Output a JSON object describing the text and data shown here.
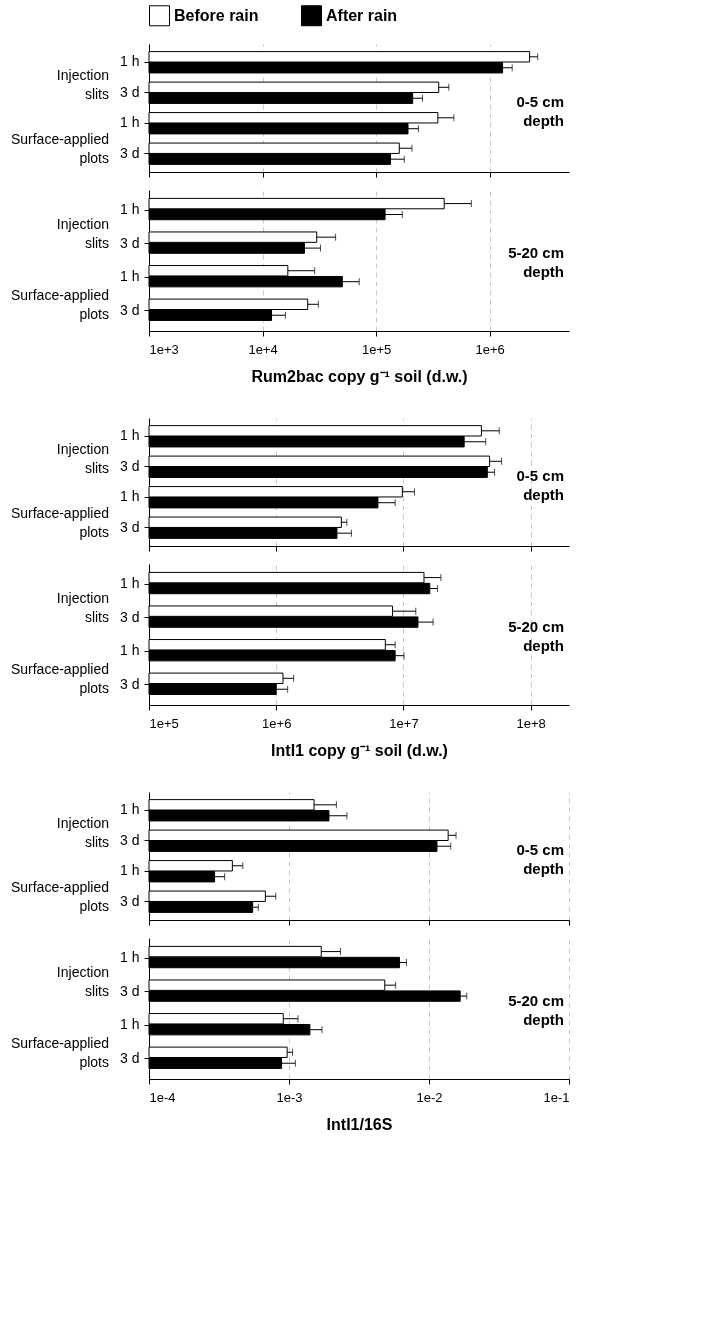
{
  "chart_data": [
    {
      "type": "bar",
      "orientation": "horizontal",
      "log": "x",
      "grid": "x",
      "legend": "top",
      "tick_labels": "y",
      "categories": [
        "1 h",
        "3 d",
        "1 h",
        "3 d"
      ],
      "xlim": [
        1000,
        5000000
      ],
      "xticks": [
        {
          "value": 1000,
          "label": null
        },
        {
          "value": 10000,
          "label": null
        },
        {
          "value": 100000,
          "label": null
        },
        {
          "value": 1000000,
          "label": null
        }
      ],
      "annotations": [
        "Injection slits",
        "Surface-applied plots",
        "0-5 cm depth"
      ],
      "series": [
        {
          "name": "Before rain",
          "color": "#ffffff",
          "values": [
            2250000,
            356000,
            350000,
            160000
          ],
          "errors": [
            [
              2250000,
              2650000
            ],
            [
              356000,
              437000
            ],
            [
              350000,
              484000
            ],
            [
              160000,
              207000
            ]
          ]
        },
        {
          "name": "After rain",
          "color": "#000000",
          "values": [
            1300000,
            210000,
            191000,
            134000
          ],
          "errors": [
            [
              1300000,
              1580000
            ],
            [
              210000,
              256000
            ],
            [
              191000,
              236000
            ],
            [
              134000,
              177000
            ]
          ]
        }
      ]
    },
    {
      "type": "bar",
      "orientation": "horizontal",
      "log": "x",
      "grid": "x",
      "categories": [
        "1 h",
        "3 d",
        "1 h",
        "3 d"
      ],
      "xlim": [
        1000,
        5000000
      ],
      "xticks": [
        {
          "value": 1000,
          "label": "1e+3"
        },
        {
          "value": 10000,
          "label": "1e+4"
        },
        {
          "value": 100000,
          "label": "1e+5"
        },
        {
          "value": 1000000,
          "label": "1e+6"
        }
      ],
      "xlabel": "Rum2bac copy g⁻¹ soil (d.w.)",
      "annotations": [
        "Injection slits",
        "Surface-applied plots",
        "5-20 cm depth"
      ],
      "series": [
        {
          "color": "#ffffff",
          "values": [
            398000,
            30000,
            16700,
            25000
          ],
          "errors": [
            [
              398000,
              690000
            ],
            [
              30000,
              44000
            ],
            [
              16700,
              28800
            ],
            [
              25000,
              31000
            ]
          ]
        },
        {
          "color": "#000000",
          "values": [
            120000,
            23400,
            50400,
            12000
          ],
          "errors": [
            [
              120000,
              170000
            ],
            [
              23400,
              32400
            ],
            [
              50400,
              71000
            ],
            [
              12000,
              15900
            ]
          ]
        }
      ]
    },
    {
      "type": "bar",
      "orientation": "horizontal",
      "log": "x",
      "grid": "x",
      "tick_labels": "y",
      "categories": [
        "1 h",
        "3 d",
        "1 h",
        "3 d"
      ],
      "xlim": [
        100000,
        200000000
      ],
      "xticks": [
        {
          "value": 100000,
          "label": null
        },
        {
          "value": 1000000,
          "label": null
        },
        {
          "value": 10000000,
          "label": null
        },
        {
          "value": 100000000,
          "label": null
        }
      ],
      "annotations": [
        "Injection slits",
        "Surface-applied plots",
        "0-5 cm depth"
      ],
      "series": [
        {
          "color": "#ffffff",
          "values": [
            41000000,
            47500000,
            9800000,
            3250000
          ],
          "errors": [
            [
              41000000,
              56600000
            ],
            [
              47500000,
              59000000
            ],
            [
              9800000,
              12200000
            ],
            [
              3250000,
              3590000
            ]
          ]
        },
        {
          "color": "#000000",
          "values": [
            30000000,
            45600000,
            6300000,
            3000000
          ],
          "errors": [
            [
              30000000,
              44300000
            ],
            [
              45600000,
              52000000
            ],
            [
              6300000,
              8600000
            ],
            [
              3000000,
              3900000
            ]
          ]
        }
      ]
    },
    {
      "type": "bar",
      "orientation": "horizontal",
      "log": "x",
      "grid": "x",
      "categories": [
        "1 h",
        "3 d",
        "1 h",
        "3 d"
      ],
      "xlim": [
        100000,
        200000000
      ],
      "xticks": [
        {
          "value": 100000,
          "label": "1e+5"
        },
        {
          "value": 1000000,
          "label": "1e+6"
        },
        {
          "value": 10000000,
          "label": "1e+7"
        },
        {
          "value": 100000000,
          "label": "1e+8"
        }
      ],
      "xlabel": "IntI1 copy g⁻¹ soil (d.w.)",
      "annotations": [
        "Injection slits",
        "Surface-applied plots",
        "5-20 cm depth"
      ],
      "series": [
        {
          "color": "#ffffff",
          "values": [
            14500000,
            8200000,
            7200000,
            1130000
          ],
          "errors": [
            [
              14500000,
              19700000
            ],
            [
              8200000,
              12500000
            ],
            [
              7200000,
              8600000
            ],
            [
              1130000,
              1370000
            ]
          ]
        },
        {
          "color": "#000000",
          "values": [
            16100000,
            13000000,
            8600000,
            1000000
          ],
          "errors": [
            [
              16100000,
              18500000
            ],
            [
              13000000,
              17100000
            ],
            [
              8600000,
              10100000
            ],
            [
              1000000,
              1230000
            ]
          ]
        }
      ]
    },
    {
      "type": "bar",
      "orientation": "horizontal",
      "log": "x",
      "grid": "x",
      "tick_labels": "y",
      "categories": [
        "1 h",
        "3 d",
        "1 h",
        "3 d"
      ],
      "xlim": [
        0.0001,
        0.1
      ],
      "xticks": [
        {
          "value": 0.0001,
          "label": null
        },
        {
          "value": 0.001,
          "label": null
        },
        {
          "value": 0.01,
          "label": null
        },
        {
          "value": 0.1,
          "label": null
        }
      ],
      "annotations": [
        "Injection slits",
        "Surface-applied plots",
        "0-5 cm depth"
      ],
      "series": [
        {
          "color": "#ffffff",
          "values": [
            0.00151,
            0.0137,
            0.000394,
            0.000678
          ],
          "errors": [
            [
              0.00151,
              0.00218
            ],
            [
              0.0137,
              0.0156
            ],
            [
              0.000394,
              0.000468
            ],
            [
              0.000678,
              0.000805
            ]
          ]
        },
        {
          "color": "#000000",
          "values": [
            0.00193,
            0.0114,
            0.000294,
            0.00055
          ],
          "errors": [
            [
              0.00193,
              0.00259
            ],
            [
              0.0114,
              0.0143
            ],
            [
              0.000294,
              0.000347
            ],
            [
              0.00055,
              0.000604
            ]
          ]
        }
      ]
    },
    {
      "type": "bar",
      "orientation": "horizontal",
      "log": "x",
      "grid": "x",
      "categories": [
        "1 h",
        "3 d",
        "1 h",
        "3 d"
      ],
      "xlim": [
        0.0001,
        0.1
      ],
      "xticks": [
        {
          "value": 0.0001,
          "label": "1e-4"
        },
        {
          "value": 0.001,
          "label": "1e-3"
        },
        {
          "value": 0.01,
          "label": "1e-2"
        },
        {
          "value": 0.1,
          "label": "1e-1"
        }
      ],
      "xlabel": "IntI1/16S",
      "annotations": [
        "Injection slits",
        "Surface-applied plots",
        "5-20 cm depth"
      ],
      "series": [
        {
          "color": "#ffffff",
          "values": [
            0.0017,
            0.00483,
            0.00091,
            0.00097
          ],
          "errors": [
            [
              0.0017,
              0.00233
            ],
            [
              0.00483,
              0.00578
            ],
            [
              0.00091,
              0.00116
            ],
            [
              0.00097,
              0.00106
            ]
          ]
        },
        {
          "color": "#000000",
          "values": [
            0.00615,
            0.0167,
            0.00141,
            0.000885
          ],
          "errors": [
            [
              0.00615,
              0.0069
            ],
            [
              0.0167,
              0.0186
            ],
            [
              0.00141,
              0.00172
            ],
            [
              0.000885,
              0.00111
            ]
          ]
        }
      ]
    }
  ]
}
